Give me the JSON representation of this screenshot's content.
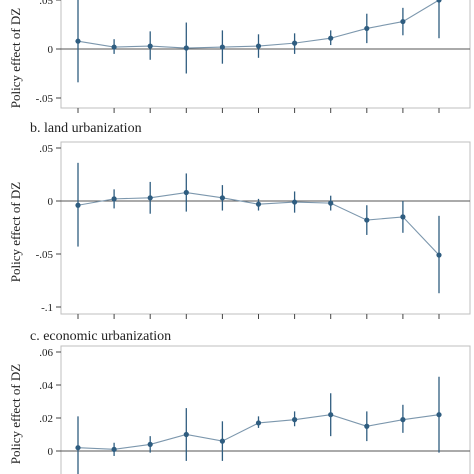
{
  "chart_data": [
    {
      "type": "line",
      "title": "",
      "ylabel": "Policy effect of DZ",
      "ylim": [
        -0.05,
        0.05
      ],
      "yticks": [
        -0.05,
        0,
        0.05
      ],
      "grid": false,
      "legend": "none",
      "series_color": "#2f5d80",
      "series": [
        {
          "values": [
            0.008,
            0.002,
            0.003,
            0.001,
            0.002,
            0.003,
            0.006,
            0.011,
            0.021,
            0.028,
            0.05
          ],
          "ci_lower": [
            -0.034,
            -0.005,
            -0.011,
            -0.025,
            -0.015,
            -0.009,
            -0.005,
            0.004,
            0.006,
            0.014,
            0.011
          ],
          "ci_upper": [
            0.05,
            0.01,
            0.018,
            0.027,
            0.019,
            0.015,
            0.016,
            0.019,
            0.036,
            0.042,
            0.089
          ]
        }
      ]
    },
    {
      "type": "line",
      "title": "b. land urbanization",
      "ylabel": "Policy effect of DZ",
      "ylim": [
        -0.1,
        0.05
      ],
      "yticks": [
        -0.1,
        -0.05,
        0,
        0.05
      ],
      "grid": false,
      "legend": "none",
      "series_color": "#2f5d80",
      "series": [
        {
          "values": [
            -0.004,
            0.002,
            0.003,
            0.008,
            0.003,
            -0.003,
            -0.001,
            -0.002,
            -0.018,
            -0.015,
            -0.051
          ],
          "ci_lower": [
            -0.043,
            -0.007,
            -0.012,
            -0.01,
            -0.009,
            -0.009,
            -0.011,
            -0.009,
            -0.032,
            -0.03,
            -0.087
          ],
          "ci_upper": [
            0.036,
            0.011,
            0.018,
            0.026,
            0.015,
            0.002,
            0.009,
            0.005,
            -0.004,
            0.0,
            -0.014
          ]
        }
      ]
    },
    {
      "type": "line",
      "title": "c. economic urbanization",
      "ylabel": "Policy effect of DZ",
      "ylim": [
        -0.01,
        0.06
      ],
      "yticks": [
        0,
        0.02,
        0.04,
        0.06
      ],
      "grid": false,
      "legend": "none",
      "series_color": "#2f5d80",
      "series": [
        {
          "values": [
            0.002,
            0.001,
            0.004,
            0.01,
            0.006,
            0.017,
            0.019,
            0.022,
            0.015,
            0.019,
            0.022
          ],
          "ci_lower": [
            -0.016,
            -0.003,
            -0.001,
            -0.006,
            -0.006,
            0.014,
            0.015,
            0.009,
            0.006,
            0.011,
            -0.001
          ],
          "ci_upper": [
            0.021,
            0.005,
            0.009,
            0.026,
            0.018,
            0.021,
            0.024,
            0.035,
            0.024,
            0.028,
            0.045
          ]
        }
      ]
    }
  ]
}
